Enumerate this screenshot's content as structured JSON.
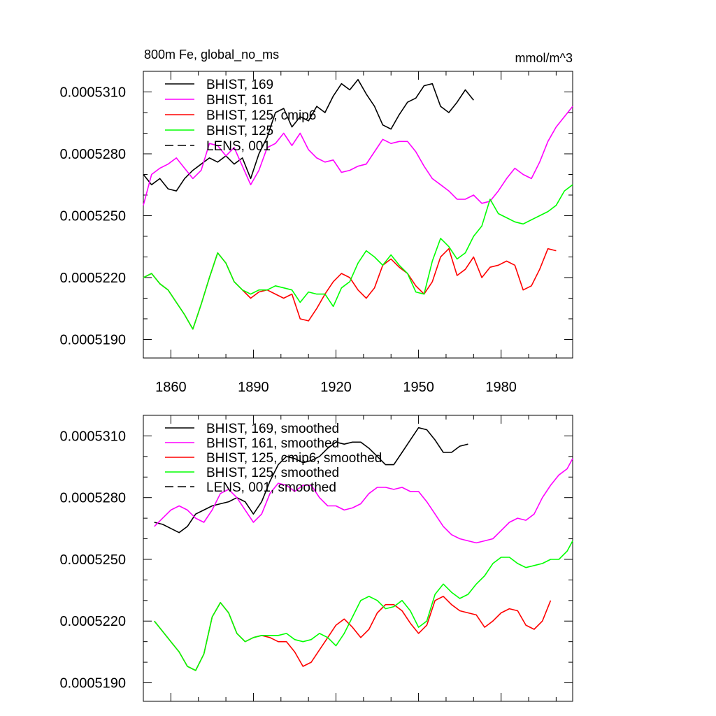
{
  "chart_data": [
    {
      "type": "line",
      "title": "800m Fe, global_no_ms",
      "units": "mmol/m^3",
      "xlim": [
        1850,
        2006
      ],
      "ylim": [
        0.0005181,
        0.000532
      ],
      "yticks": [
        0.000519,
        0.000522,
        0.000525,
        0.000528,
        0.000531
      ],
      "ytick_labels": [
        "0.0005190",
        "0.0005220",
        "0.0005250",
        "0.0005280",
        "0.0005310"
      ],
      "xticks": [
        1860,
        1890,
        1920,
        1950,
        1980
      ],
      "xtick_labels": [
        "1860",
        "1890",
        "1920",
        "1950",
        "1980"
      ],
      "legend": [
        {
          "label": "BHIST, 169",
          "color": "#000000",
          "dash": false
        },
        {
          "label": "BHIST, 161",
          "color": "#ff00ff",
          "dash": false
        },
        {
          "label": "BHIST, 125, cmip6",
          "color": "#ff0000",
          "dash": false
        },
        {
          "label": "BHIST, 125",
          "color": "#00ff00",
          "dash": false
        },
        {
          "label": "LENS, 001",
          "color": "#000000",
          "dash": true
        }
      ],
      "series": [
        {
          "name": "BHIST, 169",
          "color": "#000000",
          "x": [
            1850,
            1853,
            1856,
            1859,
            1862,
            1865,
            1868,
            1871,
            1874,
            1877,
            1880,
            1883,
            1886,
            1889,
            1892,
            1895,
            1898,
            1901,
            1904,
            1907,
            1910,
            1913,
            1916,
            1919,
            1922,
            1925,
            1928,
            1931,
            1934,
            1937,
            1940,
            1943,
            1946,
            1949,
            1952,
            1955,
            1958,
            1961,
            1964,
            1967,
            1970
          ],
          "values": [
            0.000527,
            0.0005265,
            0.0005268,
            0.0005263,
            0.0005262,
            0.0005268,
            0.0005272,
            0.0005275,
            0.0005278,
            0.0005276,
            0.0005279,
            0.0005275,
            0.0005278,
            0.0005268,
            0.000528,
            0.0005288,
            0.00053,
            0.0005302,
            0.0005293,
            0.0005298,
            0.0005296,
            0.0005303,
            0.00053,
            0.0005308,
            0.0005314,
            0.0005311,
            0.0005316,
            0.0005309,
            0.0005303,
            0.0005294,
            0.0005292,
            0.0005299,
            0.0005305,
            0.0005307,
            0.0005313,
            0.0005314,
            0.0005303,
            0.00053,
            0.0005305,
            0.0005311,
            0.0005306
          ]
        },
        {
          "name": "BHIST, 161",
          "color": "#ff00ff",
          "x": [
            1850,
            1853,
            1856,
            1859,
            1862,
            1865,
            1868,
            1871,
            1874,
            1877,
            1880,
            1883,
            1886,
            1889,
            1892,
            1895,
            1898,
            1901,
            1904,
            1907,
            1910,
            1913,
            1916,
            1919,
            1922,
            1925,
            1928,
            1931,
            1934,
            1937,
            1940,
            1943,
            1946,
            1949,
            1952,
            1955,
            1958,
            1961,
            1964,
            1967,
            1970,
            1973,
            1976,
            1979,
            1982,
            1985,
            1988,
            1991,
            1994,
            1997,
            2000,
            2003,
            2006
          ],
          "values": [
            0.0005255,
            0.000527,
            0.0005273,
            0.0005275,
            0.0005278,
            0.0005273,
            0.0005268,
            0.0005272,
            0.0005285,
            0.0005284,
            0.0005279,
            0.0005283,
            0.0005274,
            0.0005265,
            0.0005272,
            0.0005283,
            0.0005285,
            0.000529,
            0.0005284,
            0.000529,
            0.0005282,
            0.0005278,
            0.0005276,
            0.0005277,
            0.0005271,
            0.0005272,
            0.0005274,
            0.0005275,
            0.0005281,
            0.0005287,
            0.0005285,
            0.0005286,
            0.0005286,
            0.0005281,
            0.0005274,
            0.0005268,
            0.0005265,
            0.0005262,
            0.0005258,
            0.0005258,
            0.000526,
            0.0005256,
            0.0005257,
            0.0005262,
            0.0005268,
            0.0005273,
            0.000527,
            0.0005268,
            0.0005276,
            0.0005286,
            0.0005293,
            0.0005298,
            0.0005303
          ]
        },
        {
          "name": "BHIST, 125, cmip6",
          "color": "#ff0000",
          "x": [
            1850,
            1853,
            1856,
            1859,
            1862,
            1865,
            1868,
            1871,
            1874,
            1877,
            1880,
            1883,
            1886,
            1889,
            1892,
            1895,
            1898,
            1901,
            1904,
            1907,
            1910,
            1913,
            1916,
            1919,
            1922,
            1925,
            1928,
            1931,
            1934,
            1937,
            1940,
            1943,
            1946,
            1949,
            1952,
            1955,
            1958,
            1961,
            1964,
            1967,
            1970,
            1973,
            1976,
            1979,
            1982,
            1985,
            1988,
            1991,
            1994,
            1997,
            2000
          ],
          "values": [
            0.000522,
            0.0005222,
            0.0005217,
            0.0005214,
            0.0005208,
            0.0005202,
            0.0005195,
            0.0005207,
            0.000522,
            0.0005232,
            0.0005227,
            0.0005218,
            0.0005214,
            0.000521,
            0.0005213,
            0.0005214,
            0.0005212,
            0.000521,
            0.0005212,
            0.00052,
            0.0005199,
            0.0005205,
            0.0005212,
            0.0005218,
            0.0005222,
            0.000522,
            0.0005214,
            0.000521,
            0.0005215,
            0.0005226,
            0.0005229,
            0.0005225,
            0.0005222,
            0.0005216,
            0.0005212,
            0.0005218,
            0.000523,
            0.0005234,
            0.0005221,
            0.0005224,
            0.000523,
            0.000522,
            0.0005225,
            0.0005226,
            0.0005228,
            0.0005226,
            0.0005214,
            0.0005216,
            0.0005224,
            0.0005234,
            0.0005233
          ]
        },
        {
          "name": "BHIST, 125",
          "color": "#00ff00",
          "x": [
            1850,
            1853,
            1856,
            1859,
            1862,
            1865,
            1868,
            1871,
            1874,
            1877,
            1880,
            1883,
            1886,
            1889,
            1892,
            1895,
            1898,
            1901,
            1904,
            1907,
            1910,
            1913,
            1916,
            1919,
            1922,
            1925,
            1928,
            1931,
            1934,
            1937,
            1940,
            1943,
            1946,
            1949,
            1952,
            1955,
            1958,
            1961,
            1964,
            1967,
            1970,
            1973,
            1976,
            1979,
            1982,
            1985,
            1988,
            1991,
            1994,
            1997,
            2000,
            2003,
            2006
          ],
          "values": [
            0.000522,
            0.0005222,
            0.0005217,
            0.0005214,
            0.0005208,
            0.0005202,
            0.0005195,
            0.0005207,
            0.000522,
            0.0005232,
            0.0005227,
            0.0005218,
            0.0005214,
            0.0005212,
            0.0005214,
            0.0005214,
            0.0005216,
            0.0005215,
            0.0005214,
            0.0005208,
            0.0005213,
            0.0005212,
            0.0005212,
            0.0005206,
            0.0005215,
            0.0005218,
            0.0005227,
            0.0005233,
            0.000523,
            0.0005226,
            0.0005231,
            0.0005226,
            0.0005222,
            0.0005213,
            0.0005212,
            0.0005228,
            0.0005239,
            0.0005235,
            0.0005229,
            0.0005232,
            0.000524,
            0.0005245,
            0.0005258,
            0.0005251,
            0.0005249,
            0.0005247,
            0.0005246,
            0.0005248,
            0.000525,
            0.0005252,
            0.0005255,
            0.0005262,
            0.0005265
          ]
        }
      ]
    },
    {
      "type": "line",
      "xlim": [
        1850,
        2006
      ],
      "ylim": [
        0.0005181,
        0.000532
      ],
      "yticks": [
        0.000519,
        0.000522,
        0.000525,
        0.000528,
        0.000531
      ],
      "ytick_labels": [
        "0.0005190",
        "0.0005220",
        "0.0005250",
        "0.0005280",
        "0.0005310"
      ],
      "legend": [
        {
          "label": "BHIST, 169, smoothed",
          "color": "#000000",
          "dash": false
        },
        {
          "label": "BHIST, 161, smoothed",
          "color": "#ff00ff",
          "dash": false
        },
        {
          "label": "BHIST, 125, cmip6, smoothed",
          "color": "#ff0000",
          "dash": false
        },
        {
          "label": "BHIST, 125, smoothed",
          "color": "#00ff00",
          "dash": false
        },
        {
          "label": "LENS, 001, smoothed",
          "color": "#000000",
          "dash": true
        }
      ],
      "series": [
        {
          "name": "BHIST, 169, smoothed",
          "color": "#000000",
          "x": [
            1854,
            1857,
            1860,
            1863,
            1866,
            1869,
            1872,
            1875,
            1878,
            1881,
            1884,
            1887,
            1890,
            1893,
            1896,
            1899,
            1902,
            1905,
            1908,
            1911,
            1914,
            1917,
            1920,
            1923,
            1926,
            1929,
            1932,
            1935,
            1938,
            1941,
            1944,
            1947,
            1950,
            1953,
            1956,
            1959,
            1962,
            1965,
            1968
          ],
          "values": [
            0.0005268,
            0.0005267,
            0.0005265,
            0.0005263,
            0.0005266,
            0.0005272,
            0.0005274,
            0.0005276,
            0.0005277,
            0.0005278,
            0.000528,
            0.0005278,
            0.0005272,
            0.0005278,
            0.0005288,
            0.0005296,
            0.00053,
            0.0005299,
            0.0005297,
            0.0005298,
            0.00053,
            0.0005304,
            0.0005307,
            0.0005306,
            0.0005307,
            0.0005307,
            0.0005304,
            0.00053,
            0.0005296,
            0.0005296,
            0.0005302,
            0.0005308,
            0.0005314,
            0.0005313,
            0.0005308,
            0.0005302,
            0.0005302,
            0.0005305,
            0.0005306
          ]
        },
        {
          "name": "BHIST, 161, smoothed",
          "color": "#ff00ff",
          "x": [
            1854,
            1857,
            1860,
            1863,
            1866,
            1869,
            1872,
            1875,
            1878,
            1881,
            1884,
            1887,
            1890,
            1893,
            1896,
            1899,
            1902,
            1905,
            1908,
            1911,
            1914,
            1917,
            1920,
            1923,
            1926,
            1929,
            1932,
            1935,
            1938,
            1941,
            1944,
            1947,
            1950,
            1953,
            1956,
            1959,
            1962,
            1965,
            1968,
            1971,
            1974,
            1977,
            1980,
            1983,
            1986,
            1989,
            1992,
            1995,
            1998,
            2001,
            2004,
            2006
          ],
          "values": [
            0.0005266,
            0.000527,
            0.0005274,
            0.0005276,
            0.0005274,
            0.000527,
            0.0005268,
            0.0005274,
            0.0005282,
            0.0005284,
            0.000528,
            0.0005274,
            0.0005268,
            0.0005272,
            0.0005282,
            0.0005287,
            0.0005286,
            0.0005283,
            0.0005286,
            0.0005286,
            0.000528,
            0.0005276,
            0.0005276,
            0.0005274,
            0.0005275,
            0.0005277,
            0.0005282,
            0.0005285,
            0.0005285,
            0.0005284,
            0.0005285,
            0.0005283,
            0.0005283,
            0.0005278,
            0.0005272,
            0.0005266,
            0.0005262,
            0.000526,
            0.0005259,
            0.0005258,
            0.0005259,
            0.000526,
            0.0005264,
            0.0005268,
            0.000527,
            0.0005269,
            0.0005272,
            0.000528,
            0.0005286,
            0.0005291,
            0.0005294,
            0.0005299
          ]
        },
        {
          "name": "BHIST, 125, cmip6, smoothed",
          "color": "#ff0000",
          "x": [
            1854,
            1857,
            1860,
            1863,
            1866,
            1869,
            1872,
            1875,
            1878,
            1881,
            1884,
            1887,
            1890,
            1893,
            1896,
            1899,
            1902,
            1905,
            1908,
            1911,
            1914,
            1917,
            1920,
            1923,
            1926,
            1929,
            1932,
            1935,
            1938,
            1941,
            1944,
            1947,
            1950,
            1953,
            1956,
            1959,
            1962,
            1965,
            1968,
            1971,
            1974,
            1977,
            1980,
            1983,
            1986,
            1989,
            1992,
            1995,
            1998
          ],
          "values": [
            0.000522,
            0.0005215,
            0.000521,
            0.0005205,
            0.0005198,
            0.0005196,
            0.0005204,
            0.0005222,
            0.0005229,
            0.0005224,
            0.0005214,
            0.000521,
            0.0005212,
            0.0005213,
            0.0005212,
            0.000521,
            0.000521,
            0.0005205,
            0.0005198,
            0.00052,
            0.0005206,
            0.0005212,
            0.0005218,
            0.0005221,
            0.0005217,
            0.0005212,
            0.0005216,
            0.0005224,
            0.0005228,
            0.0005228,
            0.0005225,
            0.0005219,
            0.0005214,
            0.0005218,
            0.000523,
            0.0005232,
            0.0005228,
            0.0005225,
            0.0005224,
            0.0005223,
            0.0005217,
            0.000522,
            0.0005224,
            0.0005226,
            0.0005225,
            0.0005218,
            0.0005216,
            0.000522,
            0.000523
          ]
        },
        {
          "name": "BHIST, 125, smoothed",
          "color": "#00ff00",
          "x": [
            1854,
            1857,
            1860,
            1863,
            1866,
            1869,
            1872,
            1875,
            1878,
            1881,
            1884,
            1887,
            1890,
            1893,
            1896,
            1899,
            1902,
            1905,
            1908,
            1911,
            1914,
            1917,
            1920,
            1923,
            1926,
            1929,
            1932,
            1935,
            1938,
            1941,
            1944,
            1947,
            1950,
            1953,
            1956,
            1959,
            1962,
            1965,
            1968,
            1971,
            1974,
            1977,
            1980,
            1983,
            1986,
            1989,
            1992,
            1995,
            1998,
            2001,
            2004,
            2006
          ],
          "values": [
            0.000522,
            0.0005215,
            0.000521,
            0.0005205,
            0.0005198,
            0.0005196,
            0.0005204,
            0.0005222,
            0.0005229,
            0.0005224,
            0.0005214,
            0.000521,
            0.0005212,
            0.0005213,
            0.0005213,
            0.0005213,
            0.0005214,
            0.0005211,
            0.000521,
            0.0005211,
            0.0005214,
            0.0005212,
            0.0005208,
            0.0005214,
            0.0005222,
            0.000523,
            0.0005232,
            0.000523,
            0.0005226,
            0.0005227,
            0.000523,
            0.0005225,
            0.0005217,
            0.000522,
            0.0005233,
            0.0005238,
            0.0005234,
            0.0005231,
            0.0005233,
            0.0005238,
            0.0005242,
            0.0005248,
            0.0005251,
            0.0005251,
            0.0005248,
            0.0005246,
            0.0005247,
            0.0005248,
            0.000525,
            0.000525,
            0.0005254,
            0.0005259
          ]
        }
      ]
    }
  ]
}
